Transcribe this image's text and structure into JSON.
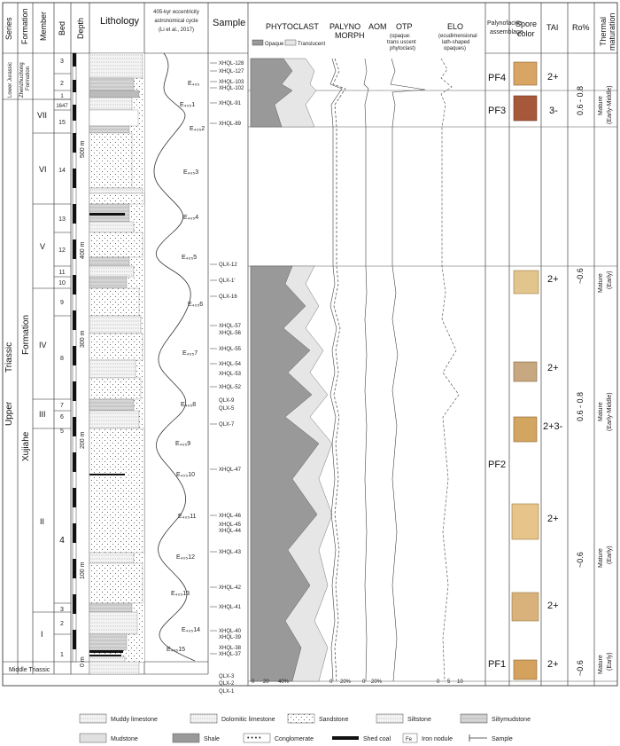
{
  "headers": {
    "series": "Series",
    "formation": "Formation",
    "member": "Member",
    "bed": "Bed",
    "depth": "Depth",
    "lithology": "Lithology",
    "eccentricity": [
      "405-kyr eccentricity",
      "astronomical cycle",
      "(Li et al., 2017)"
    ],
    "sample": "Sample",
    "phytoclast": "PHYTOCLAST",
    "palynomorph": [
      "PALYNO",
      "MORPH"
    ],
    "aom": "AOM",
    "otp": "OTP",
    "otp_sub": [
      "(opaque:",
      "trans uscent",
      "phytoclast)"
    ],
    "elo": "ELO",
    "elo_sub": [
      "(ecudimensional",
      "lath-shaped",
      "opaques)"
    ],
    "palynofacies": [
      "Palynofacies",
      "assemblage"
    ],
    "spore_color": [
      "Spore",
      "color"
    ],
    "tai": "TAI",
    "ro": "Ro%",
    "thermal": [
      "Thermal",
      "maturation"
    ]
  },
  "legend_inner": {
    "opaque": "Opaque",
    "translucent": "Translucent"
  },
  "series_col": {
    "lower_jurassic": "Lower Jurassic",
    "upper": "Upper",
    "triassic": "Triassic",
    "middle_triassic": "Middle Triassic"
  },
  "formation_col": {
    "zhenzhuchong": "Zhenzhuchong",
    "zhenzhuchong2": "Formation",
    "xujiahe": "Xujiahe",
    "formation": "Formation"
  },
  "members": [
    "VII",
    "VI",
    "V",
    "IV",
    "III",
    "II",
    "I"
  ],
  "beds": [
    "3",
    "2",
    "1",
    "1647",
    "15",
    "14",
    "13",
    "12",
    "11",
    "10",
    "9",
    "8",
    "7",
    "6",
    "5",
    "4",
    "3",
    "2",
    "1"
  ],
  "depth_labels": [
    "500 m",
    "400 m",
    "300 m",
    "200 m",
    "100 m",
    "0 m"
  ],
  "cycles": [
    "E₄₀₅",
    "E₄₀₅1",
    "E₄₀₅2",
    "E₄₀₅3",
    "E₄₀₅4",
    "E₄₀₅5",
    "E₄₀₅6",
    "E₄₀₅7",
    "E₄₀₅8",
    "E₄₀₅9",
    "E₄₀₅10",
    "E₄₀₅11",
    "E₄₀₅12",
    "E₄₀₅13",
    "E₄₀₅14",
    "E₄₀₅15"
  ],
  "samples": [
    "XHQL-128",
    "XHQL-127",
    "XHQL-103",
    "XHQL-102",
    "XHQL-91",
    "XHQL-89",
    "QLX-12",
    "QLX-1'",
    "QLX-16",
    "XHQL-57",
    "XHQL-56",
    "XHQL-55",
    "XHQL-54",
    "XHQL-53",
    "XHQL-52",
    "QLX-9",
    "QLX-5",
    "QLX-7",
    "XHQL-47",
    "XHQL-46",
    "XHQL-45",
    "XHQL-44",
    "XHQL-43",
    "XHQL-42",
    "XHQL-41",
    "XHQL-40",
    "XHQL-39",
    "XHQL-38",
    "XHQL-37",
    "QLX-3",
    "QLX-2",
    "QLX-1"
  ],
  "axis_ticks": {
    "phyto": [
      "0",
      "20",
      "40%"
    ],
    "palyno": [
      "0",
      "20%"
    ],
    "aom": [
      "0",
      "20%"
    ],
    "elo": [
      "0",
      "5",
      "10"
    ]
  },
  "palynofacies": [
    "PF4",
    "PF3",
    "PF2",
    "PF1"
  ],
  "tai_values": [
    "2+",
    "3-",
    "2+",
    "2+",
    "2+3-",
    "2+",
    "2+",
    "2+"
  ],
  "ro_values": [
    "0.6 - 0.8",
    "~0.6",
    "0.6 - 0.8",
    "~0.6",
    "~0.6"
  ],
  "thermal": [
    "Mature",
    "(Early-Middle)",
    "Mature",
    "(Early)",
    "Mature",
    "(Early-Middle)",
    "Mature",
    "(Early)",
    "Mature",
    "(Early)"
  ],
  "legend": [
    "Muddy limestone",
    "Dolomitic limestone",
    "Sandstone",
    "Siltstone",
    "Siltymudstone",
    "Mudstone",
    "Shale",
    "Conglomerate",
    "Shed coal",
    "Iron nodule",
    "Sample"
  ]
}
